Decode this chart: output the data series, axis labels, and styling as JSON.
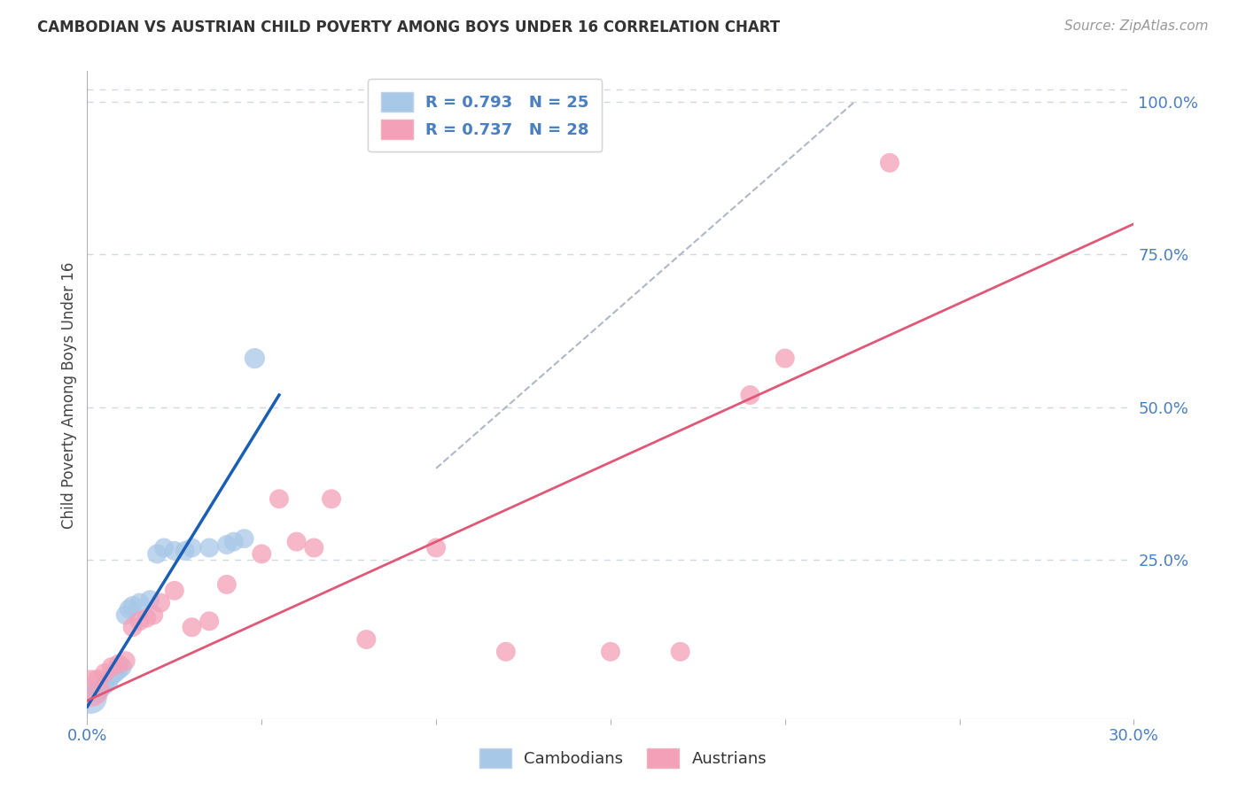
{
  "title": "CAMBODIAN VS AUSTRIAN CHILD POVERTY AMONG BOYS UNDER 16 CORRELATION CHART",
  "source": "Source: ZipAtlas.com",
  "ylabel": "Child Poverty Among Boys Under 16",
  "xlim": [
    0.0,
    0.3
  ],
  "ylim": [
    -0.01,
    1.05
  ],
  "cambodian_R": "0.793",
  "cambodian_N": "25",
  "austrian_R": "0.737",
  "austrian_N": "28",
  "cambodian_color": "#a8c8e8",
  "austrian_color": "#f4a0b8",
  "cambodian_line_color": "#1a5fb4",
  "austrian_line_color": "#e05878",
  "ref_line_color": "#b0b8c8",
  "background_color": "#ffffff",
  "grid_color": "#d0d8e0",
  "camb_x": [
    0.001,
    0.002,
    0.003,
    0.004,
    0.005,
    0.006,
    0.007,
    0.008,
    0.009,
    0.01,
    0.011,
    0.012,
    0.013,
    0.015,
    0.018,
    0.02,
    0.022,
    0.025,
    0.028,
    0.03,
    0.035,
    0.04,
    0.042,
    0.045,
    0.048
  ],
  "camb_y": [
    0.025,
    0.03,
    0.035,
    0.04,
    0.045,
    0.05,
    0.06,
    0.065,
    0.07,
    0.075,
    0.16,
    0.17,
    0.175,
    0.18,
    0.185,
    0.26,
    0.27,
    0.265,
    0.265,
    0.27,
    0.27,
    0.275,
    0.28,
    0.285,
    0.58
  ],
  "camb_sizes": [
    700,
    250,
    250,
    250,
    250,
    250,
    250,
    250,
    250,
    250,
    250,
    250,
    250,
    250,
    250,
    250,
    250,
    250,
    250,
    250,
    250,
    250,
    250,
    250,
    280
  ],
  "aust_x": [
    0.001,
    0.003,
    0.005,
    0.007,
    0.009,
    0.011,
    0.013,
    0.015,
    0.017,
    0.019,
    0.021,
    0.025,
    0.03,
    0.035,
    0.04,
    0.05,
    0.055,
    0.06,
    0.065,
    0.07,
    0.08,
    0.1,
    0.12,
    0.15,
    0.17,
    0.19,
    0.2,
    0.23
  ],
  "aust_y": [
    0.04,
    0.055,
    0.065,
    0.075,
    0.08,
    0.085,
    0.14,
    0.15,
    0.155,
    0.16,
    0.18,
    0.2,
    0.14,
    0.15,
    0.21,
    0.26,
    0.35,
    0.28,
    0.27,
    0.35,
    0.12,
    0.27,
    0.1,
    0.1,
    0.1,
    0.52,
    0.58,
    0.9
  ],
  "aust_sizes": [
    900,
    250,
    250,
    250,
    250,
    250,
    250,
    250,
    250,
    250,
    250,
    250,
    250,
    250,
    250,
    250,
    250,
    250,
    250,
    250,
    250,
    250,
    250,
    250,
    250,
    250,
    250,
    250
  ],
  "camb_line_x": [
    0.0,
    0.055
  ],
  "camb_line_y": [
    0.01,
    0.52
  ],
  "aust_line_x": [
    0.0,
    0.3
  ],
  "aust_line_y": [
    0.02,
    0.8
  ],
  "ref_line_x": [
    0.1,
    0.22
  ],
  "ref_line_y": [
    0.4,
    1.0
  ]
}
